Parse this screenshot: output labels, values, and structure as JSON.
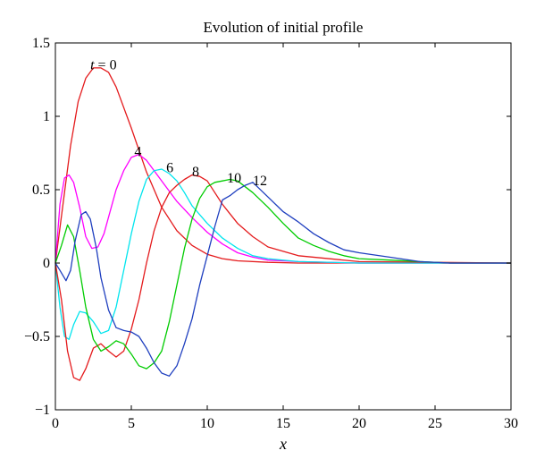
{
  "chart_data": {
    "type": "line",
    "title": "Evolution of initial profile",
    "xlabel": "x",
    "ylabel": "",
    "xlim": [
      0,
      30
    ],
    "ylim": [
      -1,
      1.5
    ],
    "xticks": [
      0,
      5,
      10,
      15,
      20,
      25,
      30
    ],
    "yticks": [
      -1,
      -0.5,
      0,
      0.5,
      1,
      1.5
    ],
    "xtick_labels": [
      "0",
      "5",
      "10",
      "15",
      "20",
      "25",
      "30"
    ],
    "ytick_labels": [
      "−1",
      "−0.5",
      "0",
      "0.5",
      "1",
      "1.5"
    ],
    "grid": false,
    "legend": "none",
    "annotations": [
      {
        "text": "t = 0",
        "x": 2.3,
        "y": 1.32
      },
      {
        "text": "4",
        "x": 5.2,
        "y": 0.73
      },
      {
        "text": "6",
        "x": 7.3,
        "y": 0.62
      },
      {
        "text": "8",
        "x": 9.0,
        "y": 0.59
      },
      {
        "text": "10",
        "x": 11.3,
        "y": 0.55
      },
      {
        "text": "12",
        "x": 13.0,
        "y": 0.53
      }
    ],
    "series": [
      {
        "color": "#e41a1c",
        "x": [
          0,
          0.5,
          1,
          1.5,
          2,
          2.5,
          3,
          3.5,
          4,
          5,
          6,
          7,
          8,
          9,
          10,
          11,
          12,
          14,
          16,
          20,
          25,
          30
        ],
        "y": [
          0,
          0.4,
          0.8,
          1.1,
          1.26,
          1.33,
          1.33,
          1.3,
          1.2,
          0.92,
          0.62,
          0.38,
          0.22,
          0.12,
          0.06,
          0.03,
          0.015,
          0.005,
          0,
          0,
          0,
          0
        ]
      },
      {
        "color": "#ff00ff",
        "x": [
          0,
          0.3,
          0.6,
          0.9,
          1.2,
          1.6,
          2,
          2.4,
          2.8,
          3.2,
          3.6,
          4,
          4.5,
          5,
          5.5,
          6,
          7,
          8,
          9,
          10,
          11,
          12,
          13,
          14,
          16,
          20,
          30
        ],
        "y": [
          0,
          0.4,
          0.58,
          0.6,
          0.55,
          0.38,
          0.18,
          0.1,
          0.11,
          0.2,
          0.35,
          0.5,
          0.63,
          0.72,
          0.74,
          0.7,
          0.56,
          0.42,
          0.31,
          0.21,
          0.13,
          0.07,
          0.04,
          0.02,
          0.01,
          0,
          0
        ]
      },
      {
        "color": "#00e5ee",
        "x": [
          0,
          0.3,
          0.6,
          0.9,
          1.2,
          1.6,
          2,
          2.5,
          3,
          3.5,
          4,
          4.5,
          5,
          5.5,
          6,
          6.5,
          7,
          7.5,
          8,
          8.5,
          9,
          10,
          11,
          12,
          13,
          14,
          16,
          20,
          30
        ],
        "y": [
          0,
          -0.3,
          -0.5,
          -0.52,
          -0.42,
          -0.33,
          -0.34,
          -0.4,
          -0.48,
          -0.46,
          -0.3,
          -0.05,
          0.2,
          0.42,
          0.57,
          0.63,
          0.64,
          0.61,
          0.56,
          0.48,
          0.39,
          0.27,
          0.17,
          0.1,
          0.05,
          0.03,
          0.01,
          0,
          0
        ]
      },
      {
        "color": "#e41a1c",
        "x": [
          0,
          0.4,
          0.8,
          1.2,
          1.6,
          2,
          2.5,
          3,
          3.5,
          4,
          4.5,
          5,
          5.5,
          6,
          6.5,
          7,
          7.5,
          8,
          8.5,
          9,
          9.5,
          10,
          10.5,
          11,
          12,
          13,
          14,
          16,
          20,
          30
        ],
        "y": [
          0,
          -0.25,
          -0.6,
          -0.78,
          -0.8,
          -0.72,
          -0.58,
          -0.55,
          -0.6,
          -0.64,
          -0.6,
          -0.45,
          -0.25,
          0,
          0.22,
          0.38,
          0.48,
          0.53,
          0.57,
          0.6,
          0.59,
          0.56,
          0.48,
          0.4,
          0.27,
          0.18,
          0.11,
          0.05,
          0.01,
          0
        ]
      },
      {
        "color": "#00cc00",
        "x": [
          0,
          0.4,
          0.8,
          1.2,
          1.6,
          2,
          2.5,
          3,
          3.5,
          4,
          4.5,
          5,
          5.5,
          6,
          6.5,
          7,
          7.5,
          8,
          8.5,
          9,
          9.5,
          10,
          10.5,
          11,
          11.5,
          12,
          13,
          14,
          15,
          16,
          17,
          18,
          19,
          20,
          22,
          24,
          26,
          30
        ],
        "y": [
          0,
          0.12,
          0.26,
          0.18,
          -0.05,
          -0.3,
          -0.52,
          -0.6,
          -0.57,
          -0.53,
          -0.55,
          -0.62,
          -0.7,
          -0.72,
          -0.68,
          -0.6,
          -0.4,
          -0.15,
          0.1,
          0.3,
          0.44,
          0.52,
          0.55,
          0.56,
          0.57,
          0.56,
          0.48,
          0.38,
          0.27,
          0.17,
          0.12,
          0.08,
          0.05,
          0.03,
          0.02,
          0.01,
          0,
          0
        ]
      },
      {
        "color": "#1f3fbf",
        "x": [
          0,
          0.3,
          0.7,
          1,
          1.3,
          1.7,
          2,
          2.3,
          2.7,
          3,
          3.5,
          4,
          4.5,
          5,
          5.5,
          6,
          6.5,
          7,
          7.5,
          8,
          8.5,
          9,
          9.5,
          10,
          10.5,
          11,
          11.5,
          12,
          12.5,
          13,
          14,
          15,
          16,
          17,
          18,
          19,
          20,
          22,
          24,
          26,
          30
        ],
        "y": [
          0,
          -0.05,
          -0.12,
          -0.05,
          0.15,
          0.33,
          0.35,
          0.3,
          0.1,
          -0.1,
          -0.32,
          -0.44,
          -0.46,
          -0.47,
          -0.5,
          -0.58,
          -0.68,
          -0.75,
          -0.77,
          -0.7,
          -0.55,
          -0.38,
          -0.15,
          0.05,
          0.25,
          0.43,
          0.46,
          0.5,
          0.53,
          0.55,
          0.45,
          0.35,
          0.28,
          0.2,
          0.14,
          0.09,
          0.07,
          0.04,
          0.01,
          0,
          0
        ]
      }
    ]
  }
}
